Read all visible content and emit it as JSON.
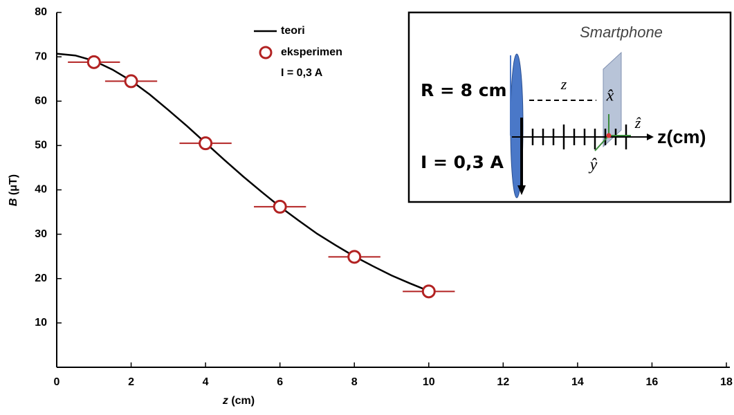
{
  "chart_data": {
    "type": "scatter",
    "xlabel_var": "z",
    "xlabel_unit": "(cm)",
    "ylabel_var": "B",
    "ylabel_unit": "(μT)",
    "xlim": [
      0,
      18
    ],
    "xticks": [
      0,
      2,
      4,
      6,
      8,
      10,
      12,
      14,
      16,
      18
    ],
    "ylim": [
      0,
      80
    ],
    "yticks": [
      10,
      20,
      30,
      40,
      50,
      60,
      70,
      80
    ],
    "legend_note": "I = 0,3 A",
    "series": [
      {
        "name": "teori",
        "color": "#000000",
        "kind": "line",
        "x": [
          0,
          0.5,
          1,
          1.5,
          2,
          2.5,
          3,
          3.5,
          4,
          4.5,
          5,
          5.5,
          6,
          6.5,
          7,
          7.5,
          8,
          8.5,
          9,
          9.5,
          10
        ],
        "values": [
          70.7,
          70.3,
          69.1,
          67.1,
          64.6,
          61.5,
          58.0,
          54.4,
          50.6,
          46.8,
          43.1,
          39.6,
          36.2,
          33.1,
          30.1,
          27.5,
          25.0,
          22.8,
          20.7,
          18.9,
          17.2
        ]
      },
      {
        "name": "eksperimen",
        "color": "#b22222",
        "kind": "points",
        "x": [
          1,
          2,
          4,
          6,
          8,
          10
        ],
        "values": [
          68.8,
          64.5,
          50.5,
          36.2,
          24.9,
          17.1
        ],
        "xerr": [
          0.7,
          0.7,
          0.7,
          0.7,
          0.7,
          0.7
        ]
      }
    ],
    "inset": {
      "device": "Smartphone",
      "radius": "R = 8 cm",
      "distance": "z",
      "current": "I = 0,3 A",
      "x_hat": "x̂",
      "y_hat": "ŷ",
      "z_hat": "ẑ",
      "axis": "z(cm)"
    }
  }
}
